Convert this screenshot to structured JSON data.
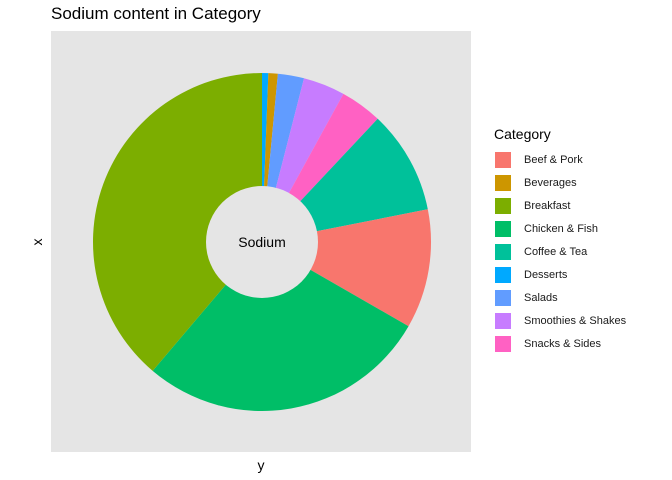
{
  "chart_data": {
    "type": "pie",
    "style": "donut",
    "title": "Sodium content in Category",
    "xlabel": "y",
    "ylabel": "x",
    "center_label": "Sodium",
    "legend_title": "Category",
    "legend_position": "right",
    "categories": [
      "Beef & Pork",
      "Beverages",
      "Breakfast",
      "Chicken & Fish",
      "Coffee & Tea",
      "Desserts",
      "Salads",
      "Smoothies & Shakes",
      "Snacks & Sides"
    ],
    "values": [
      11.4,
      0.9,
      38.8,
      27.9,
      9.9,
      0.6,
      2.5,
      4.0,
      4.0
    ],
    "colors": [
      "#F8766D",
      "#CD9600",
      "#7CAE00",
      "#00BE67",
      "#00C19A",
      "#00A9FF",
      "#619CFF",
      "#C77CFF",
      "#FF61C3"
    ],
    "slice_order_clockwise_from_top": [
      "Desserts",
      "Beverages",
      "Salads",
      "Smoothies & Shakes",
      "Snacks & Sides",
      "Coffee & Tea",
      "Beef & Pork",
      "Chicken & Fish",
      "Breakfast"
    ]
  }
}
